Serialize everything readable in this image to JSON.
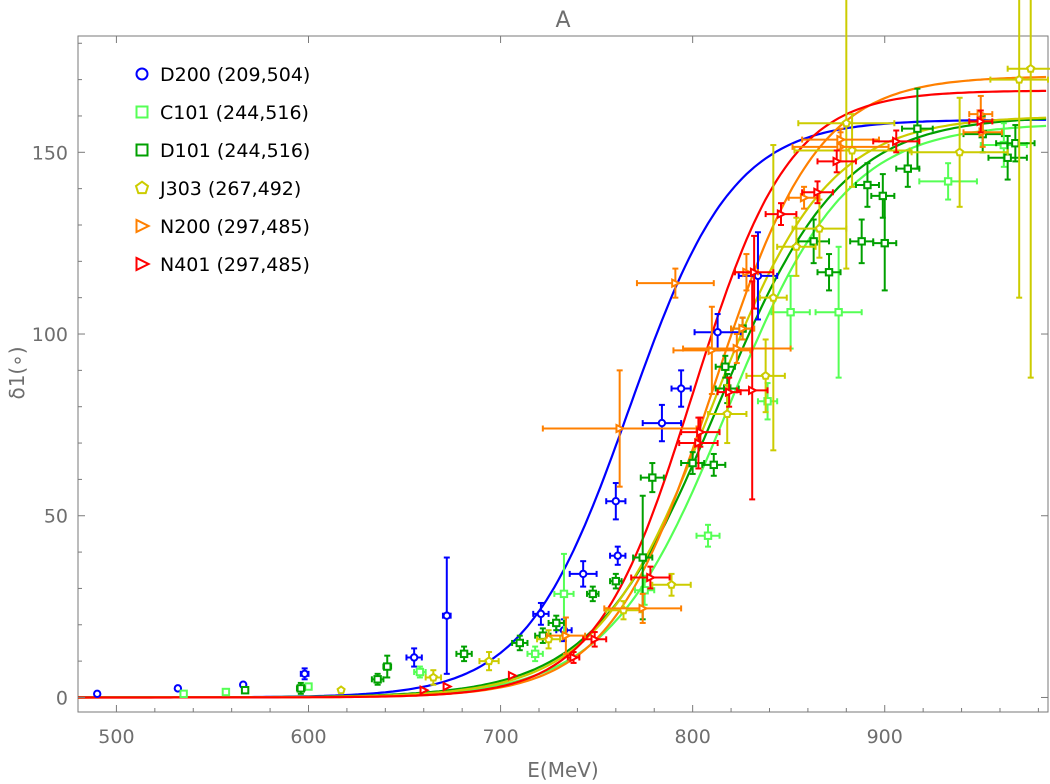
{
  "chart_data": {
    "type": "scatter",
    "title": "A",
    "xlabel": "E(MeV)",
    "ylabel": "δ1(∘)",
    "xlim": [
      480,
      985
    ],
    "ylim": [
      -4,
      182
    ],
    "xticks": [
      500,
      600,
      700,
      800,
      900
    ],
    "yticks": [
      0,
      50,
      100,
      150
    ],
    "grid": false,
    "legend_position": "top-left",
    "series": [
      {
        "name": "D200 (209,504)",
        "color": "#0000ff",
        "marker": "circle",
        "curve": {
          "center": 767,
          "slope": 27,
          "amplitude": 159
        },
        "points": [
          [
            490,
            1,
            0,
            0
          ],
          [
            532,
            2.5,
            0,
            0
          ],
          [
            566,
            3.5,
            0,
            0
          ],
          [
            598,
            6.5,
            2,
            1.5
          ],
          [
            655,
            11,
            4,
            2.5
          ],
          [
            672,
            22.5,
            2,
            16
          ],
          [
            721,
            23,
            4,
            3
          ],
          [
            733,
            18.5,
            4,
            3
          ],
          [
            743,
            34,
            7,
            3.5
          ],
          [
            761,
            39,
            4,
            2.5
          ],
          [
            760,
            54,
            5,
            5
          ],
          [
            784,
            75.5,
            10,
            5
          ],
          [
            794,
            85,
            5,
            5
          ],
          [
            813,
            100.5,
            12,
            5
          ],
          [
            834,
            116,
            10,
            12
          ]
        ]
      },
      {
        "name": "C101 (244,516)",
        "color": "#55ff55",
        "marker": "square",
        "curve": {
          "center": 818,
          "slope": 31,
          "amplitude": 158
        },
        "points": [
          [
            535,
            1,
            0,
            0
          ],
          [
            557,
            1.5,
            0,
            0
          ],
          [
            600,
            3,
            0,
            0
          ],
          [
            658,
            7,
            3,
            1.5
          ],
          [
            718,
            12,
            4,
            2
          ],
          [
            733,
            28.5,
            5,
            11
          ],
          [
            775,
            29.5,
            5,
            4
          ],
          [
            808,
            44.5,
            6,
            3
          ],
          [
            839,
            81.5,
            5,
            5
          ],
          [
            851,
            106,
            10,
            10
          ],
          [
            876,
            106,
            12,
            18
          ],
          [
            933,
            142,
            15,
            5
          ],
          [
            962,
            152,
            12,
            6
          ]
        ]
      },
      {
        "name": "D101 (244,516)",
        "color": "#00a000",
        "marker": "square",
        "curve": {
          "center": 813,
          "slope": 32,
          "amplitude": 160
        },
        "points": [
          [
            567,
            2,
            0,
            0
          ],
          [
            596,
            2.5,
            2,
            1.5
          ],
          [
            636,
            5,
            3,
            1.5
          ],
          [
            641,
            8.5,
            2,
            3
          ],
          [
            681,
            12,
            4,
            2
          ],
          [
            710,
            15,
            4,
            2
          ],
          [
            722,
            17,
            4,
            2
          ],
          [
            729,
            20.5,
            4,
            2
          ],
          [
            748,
            28.5,
            3,
            2
          ],
          [
            760,
            32,
            3,
            2
          ],
          [
            774,
            38.5,
            5,
            17
          ],
          [
            779,
            60.5,
            6,
            4
          ],
          [
            800,
            64.5,
            6,
            3
          ],
          [
            811,
            64,
            6,
            3
          ],
          [
            818,
            85,
            6,
            4
          ],
          [
            817,
            91,
            5,
            3
          ],
          [
            826,
            101.5,
            6,
            3
          ],
          [
            863,
            125.5,
            8,
            6
          ],
          [
            871,
            117,
            6,
            5
          ],
          [
            888,
            125.5,
            6,
            6
          ],
          [
            900,
            125,
            6,
            13
          ],
          [
            891,
            141,
            6,
            6
          ],
          [
            899,
            138,
            6,
            6
          ],
          [
            912,
            145.5,
            6,
            5
          ],
          [
            917,
            156.5,
            8,
            11
          ],
          [
            951,
            155,
            10,
            5
          ],
          [
            964,
            148.5,
            10,
            6
          ],
          [
            968,
            152.5,
            10,
            5
          ]
        ]
      },
      {
        "name": "J303 (267,492)",
        "color": "#cccc00",
        "marker": "pentagon",
        "curve": {
          "center": 810,
          "slope": 30,
          "amplitude": 160
        },
        "points": [
          [
            617,
            2,
            0,
            0
          ],
          [
            665,
            5.5,
            4,
            2
          ],
          [
            694,
            10,
            5,
            2.5
          ],
          [
            725,
            16,
            6,
            2.5
          ],
          [
            764,
            24,
            9,
            2.5
          ],
          [
            789,
            31,
            10,
            3
          ],
          [
            818,
            78,
            10,
            8
          ],
          [
            838,
            88.5,
            10,
            10
          ],
          [
            842,
            110,
            7,
            42
          ],
          [
            854,
            124,
            10,
            8
          ],
          [
            866,
            129,
            14,
            8
          ],
          [
            880,
            158,
            25,
            40
          ],
          [
            883,
            150.5,
            30,
            10
          ],
          [
            939,
            150,
            25,
            15
          ],
          [
            970,
            170,
            15,
            60
          ],
          [
            976,
            173,
            12,
            85
          ]
        ]
      },
      {
        "name": "N200 (297,485)",
        "color": "#ff8000",
        "marker": "triangle",
        "curve": {
          "center": 811,
          "slope": 27,
          "amplitude": 171
        },
        "points": [
          [
            734,
            17,
            10,
            5
          ],
          [
            762,
            74,
            40,
            16
          ],
          [
            774,
            24.5,
            20,
            4
          ],
          [
            791,
            114,
            20,
            4
          ],
          [
            810,
            95.5,
            20,
            12
          ],
          [
            823,
            96,
            28,
            4
          ],
          [
            826,
            101.5,
            6,
            3
          ],
          [
            828,
            117,
            6,
            5
          ],
          [
            858,
            137.5,
            8,
            3
          ],
          [
            877,
            151.5,
            25,
            4
          ],
          [
            877,
            153.5,
            20,
            3
          ],
          [
            950,
            160.5,
            6,
            5
          ],
          [
            951,
            155.5,
            10,
            4
          ]
        ]
      },
      {
        "name": "N401 (297,485)",
        "color": "#ff0000",
        "marker": "triangle",
        "curve": {
          "center": 800,
          "slope": 25,
          "amplitude": 167
        },
        "points": [
          [
            660,
            2,
            0,
            0
          ],
          [
            672,
            3,
            0,
            0
          ],
          [
            706,
            6,
            0,
            0
          ],
          [
            738,
            11,
            3,
            1.5
          ],
          [
            749,
            16,
            6,
            2
          ],
          [
            778,
            33,
            10,
            3
          ],
          [
            803,
            70,
            10,
            7
          ],
          [
            804,
            73,
            10,
            4
          ],
          [
            819,
            84,
            6,
            4
          ],
          [
            831,
            84.5,
            8,
            30
          ],
          [
            832,
            117,
            10,
            10
          ],
          [
            846,
            133,
            8,
            3
          ],
          [
            865,
            139,
            8,
            3
          ],
          [
            875,
            147.5,
            10,
            3
          ],
          [
            906,
            153,
            12,
            3
          ],
          [
            950,
            158.5,
            6,
            3
          ]
        ]
      }
    ]
  }
}
